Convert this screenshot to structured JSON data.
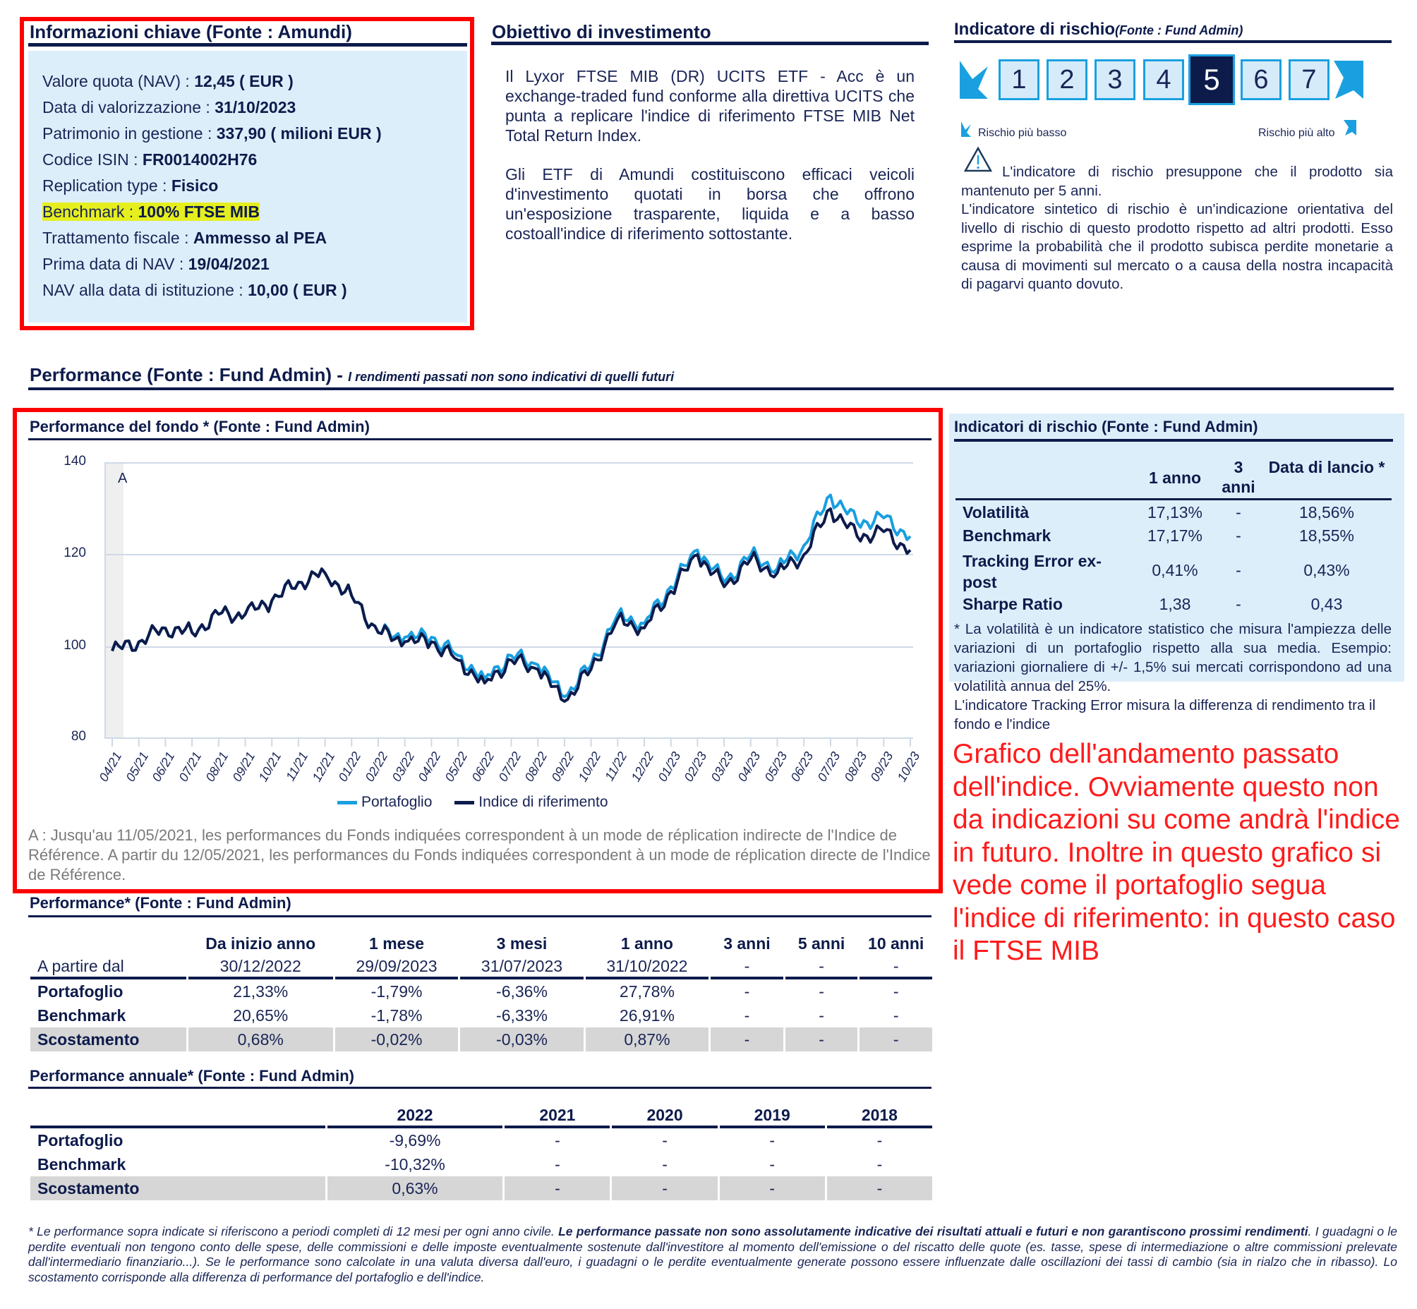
{
  "key_info": {
    "title": "Informazioni chiave (Fonte : Amundi)",
    "rows": [
      {
        "label": "Valore quota (NAV) : ",
        "value": "12,45 ( EUR )"
      },
      {
        "label": "Data di valorizzazione : ",
        "value": "31/10/2023"
      },
      {
        "label": "Patrimonio in gestione : ",
        "value": "337,90 ( milioni EUR )"
      },
      {
        "label": "Codice ISIN : ",
        "value": "FR0014002H76"
      },
      {
        "label": "Replication type : ",
        "value": "Fisico"
      },
      {
        "label": "Benchmark : ",
        "value": "100% FTSE MIB",
        "highlighted": true
      },
      {
        "label": "Trattamento fiscale : ",
        "value": "Ammesso al PEA"
      },
      {
        "label": "Prima data di NAV : ",
        "value": "19/04/2021"
      },
      {
        "label": "NAV alla data di istituzione : ",
        "value": "10,00 ( EUR )"
      }
    ],
    "highlight_color": "#e6ef1e"
  },
  "objective": {
    "title": "Obiettivo di investimento",
    "paragraph1": "Il Lyxor FTSE MIB (DR) UCITS ETF - Acc è un exchange-traded fund conforme alla direttiva UCITS che punta a replicare l'indice di riferimento FTSE MIB Net Total Return Index.",
    "paragraph2": "Gli ETF di Amundi costituiscono efficaci veicoli d'investimento quotati in borsa che offrono un'esposizione trasparente, liquida e a basso costoall'indice di riferimento sottostante."
  },
  "risk_indicator": {
    "title": "Indicatore di rischio",
    "title_source": "(Fonte : Fund Admin)",
    "levels": [
      "1",
      "2",
      "3",
      "4",
      "5",
      "6",
      "7"
    ],
    "active_level": "5",
    "low_label": "Rischio più basso",
    "high_label": "Rischio più alto",
    "warning_text": "L'indicatore di rischio presuppone che il prodotto sia mantenuto per 5 anni.",
    "description": "L'indicatore sintetico di rischio è un'indicazione orientativa del livello di rischio di questo prodotto rispetto ad altri prodotti. Esso esprime la probabilità che il prodotto subisca perdite monetarie a causa di movimenti sul mercato o a causa della nostra incapacità di pagarvi quanto dovuto."
  },
  "performance_header": {
    "title": "Performance (Fonte : Fund Admin) - ",
    "subtitle": "I rendimenti passati non sono indicativi di quelli futuri"
  },
  "fund_chart": {
    "title": "Performance del fondo * (Fonte : Fund Admin)",
    "marker_label": "A",
    "legend": {
      "portfolio": "Portafoglio",
      "index": "Indice di riferimento"
    },
    "note": "A : Jusqu'au 11/05/2021, les performances du Fonds indiquées correspondent à un mode de réplication indirecte de l'Indice de Référence. A partir du 12/05/2021, les performances du Fonds indiquées correspondent à un mode de réplication directe de l'Indice de Référence.",
    "colors": {
      "portfolio": "#1a9fe0",
      "index": "#0d1b4b"
    }
  },
  "chart_data": {
    "type": "line",
    "title": "Performance del fondo * (Fonte : Fund Admin)",
    "xlabel": "",
    "ylabel": "",
    "ylim": [
      80,
      140
    ],
    "yticks": [
      80,
      100,
      120,
      140
    ],
    "grid": true,
    "legend_position": "bottom",
    "categories": [
      "04/21",
      "05/21",
      "06/21",
      "07/21",
      "08/21",
      "09/21",
      "10/21",
      "11/21",
      "12/21",
      "01/22",
      "02/22",
      "03/22",
      "04/22",
      "05/22",
      "06/22",
      "07/22",
      "08/22",
      "09/22",
      "10/22",
      "11/22",
      "12/22",
      "01/23",
      "02/23",
      "03/23",
      "04/23",
      "05/23",
      "06/23",
      "07/23",
      "08/23",
      "09/23",
      "10/23"
    ],
    "series": [
      {
        "name": "Portafoglio",
        "values": [
          99,
          101,
          104,
          103,
          107,
          107,
          110,
          114,
          116,
          111,
          103,
          102,
          102,
          98,
          93,
          98,
          96,
          89,
          96,
          107,
          105,
          113,
          121,
          114,
          120,
          117,
          122,
          133,
          127,
          128,
          124
        ]
      },
      {
        "name": "Indice di riferimento",
        "values": [
          99,
          101,
          104,
          103,
          107,
          107,
          110,
          114,
          116,
          111,
          103,
          101,
          101,
          97,
          92,
          97,
          95,
          88,
          95,
          106,
          104,
          112,
          120,
          113,
          119,
          116,
          120,
          130,
          124,
          125,
          121
        ]
      }
    ],
    "annotations": [
      {
        "label": "A",
        "x_range": [
          "04/21",
          "05/21"
        ],
        "shaded": true
      }
    ]
  },
  "risk_table": {
    "title": "Indicatori di rischio (Fonte : Fund Admin)",
    "columns": [
      "1 anno",
      "3 anni",
      "Data di lancio *"
    ],
    "rows": [
      {
        "label": "Volatilità",
        "values": [
          "17,13%",
          "-",
          "18,56%"
        ]
      },
      {
        "label": "Benchmark",
        "values": [
          "17,17%",
          "-",
          "18,55%"
        ]
      },
      {
        "label": "Tracking Error ex-post",
        "values": [
          "0,41%",
          "-",
          "0,43%"
        ]
      },
      {
        "label": "Sharpe Ratio",
        "values": [
          "1,38",
          "-",
          "0,43"
        ]
      }
    ],
    "footnote": "* La volatilità è un indicatore statistico che misura l'ampiezza delle variazioni di un portafoglio rispetto alla sua media. Esempio: variazioni giornaliere di +/- 1,5% sui mercati corrispondono ad una volatilità annua del 25%.",
    "tracking_note": "L'indicatore Tracking Error misura la differenza di rendimento tra il fondo e l'indice"
  },
  "annotation": {
    "text": "Grafico dell'andamento passato dell'indice. Ovviamente questo non da indicazioni su come andrà l'indice in futuro. Inoltre in questo grafico si vede come il portafoglio segua l'indice di riferimento: in questo caso il FTSE MIB",
    "color": "#ff1a1a"
  },
  "performance_table": {
    "title": "Performance* (Fonte : Fund Admin)",
    "columns": [
      "Da inizio anno",
      "1 mese",
      "3 mesi",
      "1 anno",
      "3 anni",
      "5 anni",
      "10 anni"
    ],
    "start_label": "A partire dal",
    "start_dates": [
      "30/12/2022",
      "29/09/2023",
      "31/07/2023",
      "31/10/2022",
      "-",
      "-",
      "-"
    ],
    "rows": [
      {
        "label": "Portafoglio",
        "values": [
          "21,33%",
          "-1,79%",
          "-6,36%",
          "27,78%",
          "-",
          "-",
          "-"
        ]
      },
      {
        "label": "Benchmark",
        "values": [
          "20,65%",
          "-1,78%",
          "-6,33%",
          "26,91%",
          "-",
          "-",
          "-"
        ]
      },
      {
        "label": "Scostamento",
        "values": [
          "0,68%",
          "-0,02%",
          "-0,03%",
          "0,87%",
          "-",
          "-",
          "-"
        ]
      }
    ]
  },
  "annual_table": {
    "title": "Performance annuale* (Fonte : Fund Admin)",
    "columns": [
      "2022",
      "2021",
      "2020",
      "2019",
      "2018"
    ],
    "rows": [
      {
        "label": "Portafoglio",
        "values": [
          "-9,69%",
          "-",
          "-",
          "-",
          "-"
        ]
      },
      {
        "label": "Benchmark",
        "values": [
          "-10,32%",
          "-",
          "-",
          "-",
          "-"
        ]
      },
      {
        "label": "Scostamento",
        "values": [
          "0,63%",
          "-",
          "-",
          "-",
          "-"
        ]
      }
    ]
  },
  "footnote": {
    "part1": "* Le performance sopra indicate si riferiscono a periodi completi di 12 mesi per ogni anno civile. ",
    "bold": "Le performance passate non sono assolutamente indicative dei risultati attuali e futuri e non garantiscono prossimi rendimenti",
    "part2": ". I guadagni o le perdite eventuali non tengono conto delle spese, delle commissioni e delle imposte eventualmente sostenute dall'investitore al momento dell'emissione o del riscatto delle quote (es. tasse, spese di intermediazione o altre commissioni prelevate dall'intermediario finanziario...). Se le performance sono calcolate in una valuta diversa dall'euro, i guadagni o le perdite eventualmente generate possono essere influenzate dalle oscillazioni dei tassi di cambio (sia in rialzo che in ribasso). Lo scostamento corrisponde alla differenza di performance del portafoglio e dell'indice."
  }
}
